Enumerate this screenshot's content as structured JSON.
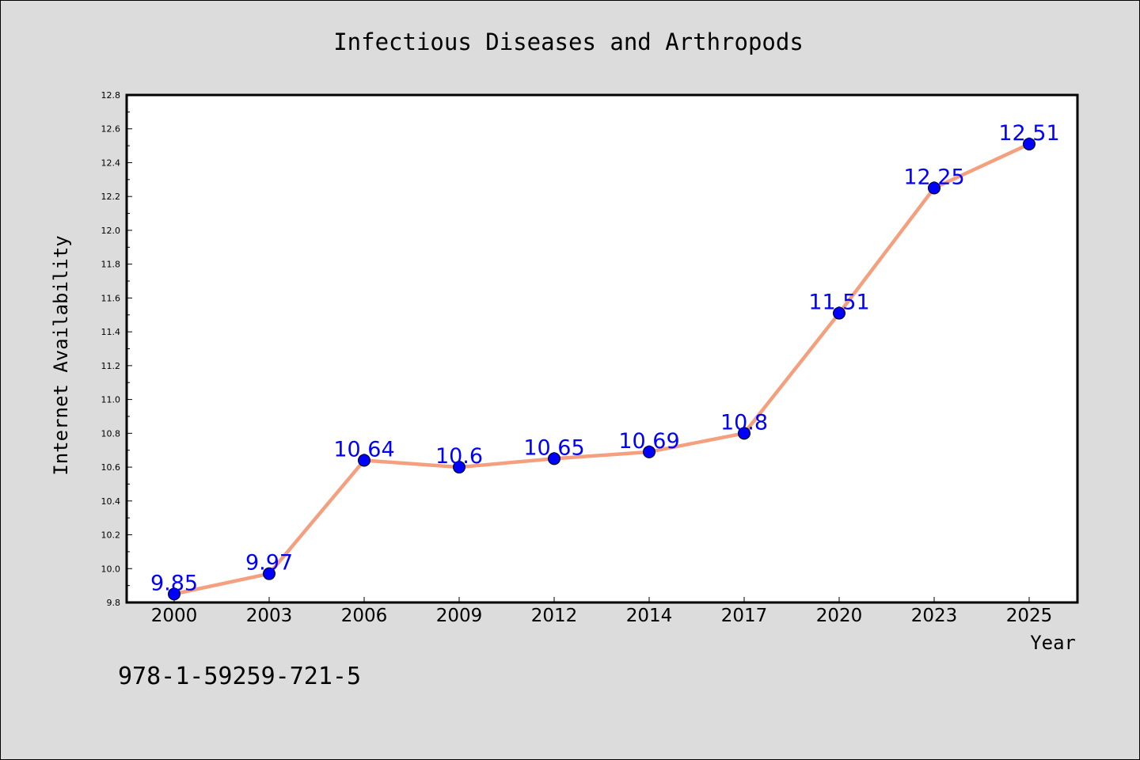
{
  "chart_data": {
    "type": "line",
    "title": "Infectious Diseases and Arthropods",
    "xlabel": "Year",
    "ylabel": "Internet Availability",
    "categories": [
      "2000",
      "2003",
      "2006",
      "2009",
      "2012",
      "2014",
      "2017",
      "2020",
      "2023",
      "2025"
    ],
    "series": [
      {
        "values": [
          9.85,
          9.97,
          10.64,
          10.6,
          10.65,
          10.69,
          10.8,
          11.51,
          12.25,
          12.51
        ],
        "labels": [
          "9.85",
          "9.97",
          "10.64",
          "10.6",
          "10.65",
          "10.69",
          "10.8",
          "11.51",
          "12.25",
          "12.51"
        ]
      }
    ],
    "ylim": [
      9.8,
      12.8
    ],
    "yticks": [
      "9.8",
      "10.0",
      "10.2",
      "10.4",
      "10.6",
      "10.8",
      "11.0",
      "11.2",
      "11.4",
      "11.6",
      "11.8",
      "12.0",
      "12.2",
      "12.4",
      "12.6",
      "12.8"
    ],
    "grid": false,
    "legend": "none"
  },
  "annotation": "978-1-59259-721-5",
  "colors": {
    "background": "#dcdcdc",
    "plot_bg": "#ffffff",
    "line": "#f4a07e",
    "marker": "#0000ff",
    "data_label": "#0000ff",
    "axis": "#000000"
  }
}
